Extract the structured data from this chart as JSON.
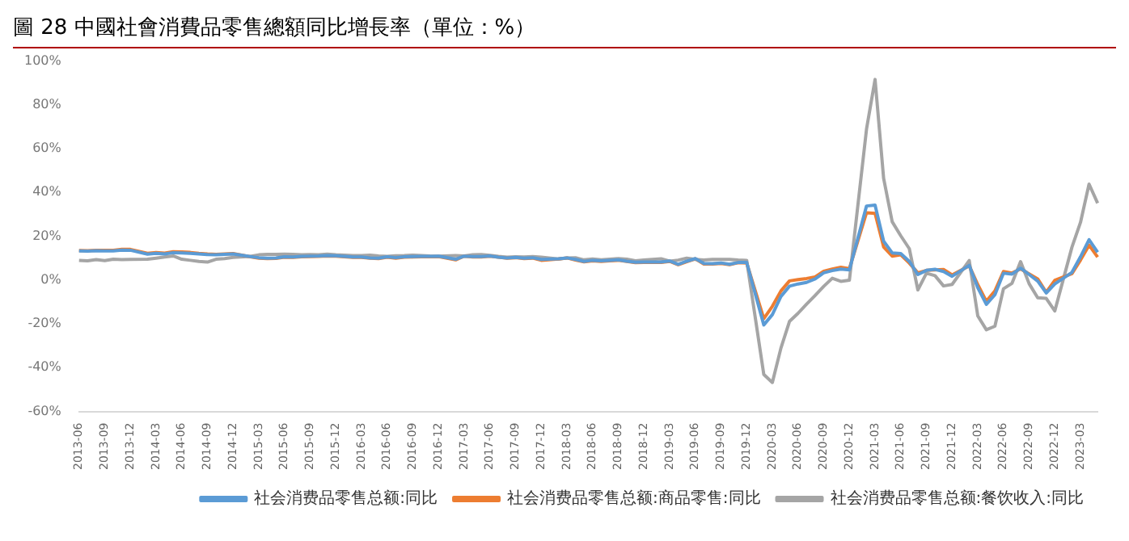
{
  "chart_data": {
    "type": "line",
    "title": "圖 28 中國社會消費品零售總額同比增長率（單位：%）",
    "categories": [
      "2013-06",
      null,
      null,
      "2013-09",
      null,
      null,
      "2013-12",
      null,
      null,
      "2014-03",
      null,
      null,
      "2014-06",
      null,
      null,
      "2014-09",
      null,
      null,
      "2014-12",
      null,
      null,
      "2015-03",
      null,
      null,
      "2015-06",
      null,
      null,
      "2015-09",
      null,
      null,
      "2015-12",
      null,
      null,
      "2016-03",
      null,
      null,
      "2016-06",
      null,
      null,
      "2016-09",
      null,
      null,
      "2016-12",
      null,
      null,
      "2017-03",
      null,
      null,
      "2017-06",
      null,
      null,
      "2017-09",
      null,
      null,
      "2017-12",
      null,
      null,
      "2018-03",
      null,
      null,
      "2018-06",
      null,
      null,
      "2018-09",
      null,
      null,
      "2018-12",
      null,
      null,
      "2019-03",
      null,
      null,
      "2019-06",
      null,
      null,
      "2019-09",
      null,
      null,
      "2019-12",
      null,
      null,
      "2020-03",
      null,
      null,
      "2020-06",
      null,
      null,
      "2020-09",
      null,
      null,
      "2020-12",
      null,
      null,
      "2021-03",
      null,
      null,
      "2021-06",
      null,
      null,
      "2021-09",
      null,
      null,
      "2021-12",
      null,
      null,
      "2022-03",
      null,
      null,
      "2022-06",
      null,
      null,
      "2022-09",
      null,
      null,
      "2022-12",
      null,
      null,
      "2023-03",
      null,
      null
    ],
    "series": [
      {
        "name": "社会消费品零售总额:同比",
        "color": "#5b9bd5",
        "values": [
          13.3,
          13.2,
          13.4,
          13.3,
          13.3,
          13.7,
          13.6,
          null,
          11.8,
          12.2,
          11.9,
          12.5,
          12.4,
          12.2,
          11.9,
          11.6,
          11.5,
          11.7,
          11.9,
          null,
          10.7,
          10.2,
          10.0,
          10.1,
          10.6,
          10.5,
          10.8,
          10.9,
          11.0,
          11.2,
          11.1,
          null,
          10.5,
          10.5,
          10.1,
          10.0,
          10.6,
          10.2,
          10.6,
          10.7,
          10.8,
          10.8,
          10.9,
          null,
          9.5,
          10.9,
          10.7,
          10.7,
          11.0,
          10.4,
          10.1,
          10.3,
          10.0,
          10.2,
          9.4,
          null,
          9.7,
          10.1,
          9.4,
          8.5,
          9.0,
          8.8,
          9.0,
          9.2,
          8.6,
          8.1,
          8.2,
          null,
          8.2,
          8.7,
          7.2,
          8.6,
          9.8,
          7.6,
          7.5,
          7.8,
          7.2,
          8.0,
          8.0,
          null,
          -20.5,
          -15.8,
          -7.5,
          -2.8,
          -1.8,
          -1.1,
          0.5,
          3.3,
          4.3,
          5.0,
          4.6,
          null,
          33.8,
          34.2,
          17.7,
          12.4,
          12.1,
          8.5,
          2.5,
          4.4,
          4.9,
          3.9,
          1.7,
          null,
          6.7,
          -3.5,
          -11.1,
          -6.7,
          3.1,
          2.7,
          5.4,
          2.5,
          -0.5,
          -5.9,
          -1.8,
          null,
          3.5,
          10.6,
          18.4,
          12.7
        ]
      },
      {
        "name": "社会消费品零售总额:商品零售:同比",
        "color": "#ed7d31",
        "values": [
          13.5,
          13.4,
          13.6,
          13.6,
          13.6,
          14.0,
          14.0,
          null,
          12.2,
          12.6,
          12.3,
          12.9,
          12.8,
          12.6,
          12.2,
          11.9,
          11.7,
          11.9,
          12.1,
          null,
          10.6,
          10.0,
          9.8,
          9.9,
          10.4,
          10.3,
          10.6,
          10.7,
          10.8,
          11.0,
          10.9,
          null,
          10.3,
          10.3,
          10.0,
          9.8,
          10.4,
          10.0,
          10.4,
          10.5,
          10.6,
          10.6,
          10.7,
          null,
          9.2,
          10.9,
          10.5,
          10.5,
          10.9,
          10.4,
          10.0,
          10.2,
          9.8,
          10.0,
          9.0,
          null,
          9.6,
          10.1,
          9.1,
          8.3,
          8.8,
          8.5,
          8.8,
          9.0,
          8.5,
          7.9,
          8.0,
          null,
          8.0,
          8.5,
          7.0,
          8.4,
          9.7,
          7.3,
          7.3,
          7.6,
          7.0,
          7.9,
          7.8,
          null,
          -17.6,
          -12.0,
          -5.0,
          -0.4,
          0.2,
          0.7,
          1.4,
          4.0,
          5.0,
          5.8,
          5.2,
          null,
          30.7,
          30.4,
          15.1,
          10.9,
          11.5,
          7.7,
          3.3,
          4.4,
          4.6,
          4.8,
          2.3,
          null,
          6.5,
          -2.1,
          -9.7,
          -5.0,
          3.9,
          3.2,
          5.1,
          2.8,
          0.5,
          -5.6,
          -0.1,
          null,
          2.9,
          9.1,
          15.9,
          10.5
        ]
      },
      {
        "name": "社会消费品零售总额:餐饮收入:同比",
        "color": "#a5a5a5",
        "values": [
          9.0,
          8.8,
          9.3,
          8.9,
          9.5,
          9.3,
          9.4,
          null,
          9.5,
          10.0,
          10.5,
          11.0,
          9.5,
          9.0,
          8.5,
          8.2,
          9.5,
          9.8,
          10.3,
          null,
          10.8,
          11.5,
          11.7,
          11.7,
          11.8,
          11.7,
          11.5,
          11.6,
          11.5,
          11.8,
          11.5,
          null,
          11.2,
          11.2,
          11.4,
          11.0,
          10.8,
          11.1,
          11.2,
          11.4,
          11.2,
          11.0,
          10.9,
          null,
          11.2,
          11.0,
          11.5,
          11.6,
          11.3,
          10.8,
          10.4,
          10.6,
          10.5,
          10.7,
          10.4,
          null,
          9.6,
          10.1,
          10.2,
          9.2,
          9.6,
          9.2,
          9.5,
          9.8,
          9.5,
          8.8,
          9.1,
          null,
          9.7,
          8.6,
          9.1,
          10.0,
          9.4,
          9.1,
          9.4,
          9.4,
          9.4,
          9.1,
          9.0,
          null,
          -43.1,
          -46.8,
          -31.1,
          -18.9,
          -15.2,
          -11.0,
          -7.0,
          -2.9,
          0.8,
          -0.6,
          -0.1,
          null,
          68.9,
          91.6,
          46.4,
          26.6,
          20.2,
          14.3,
          -4.5,
          3.1,
          2.0,
          -2.7,
          -2.0,
          null,
          8.9,
          -16.4,
          -22.7,
          -21.1,
          -4.0,
          -1.5,
          8.4,
          -1.7,
          -8.1,
          -8.4,
          -14.1,
          null,
          15.0,
          26.3,
          43.8,
          35.1
        ]
      }
    ],
    "ylim": [
      -60,
      100
    ],
    "yticks": [
      {
        "value": -60,
        "label": "-60%"
      },
      {
        "value": -40,
        "label": "-40%"
      },
      {
        "value": -20,
        "label": "-20%"
      },
      {
        "value": 0,
        "label": "0%"
      },
      {
        "value": 20,
        "label": "20%"
      },
      {
        "value": 40,
        "label": "40%"
      },
      {
        "value": 60,
        "label": "60%"
      },
      {
        "value": 80,
        "label": "80%"
      },
      {
        "value": 100,
        "label": "100%"
      }
    ],
    "grid": false,
    "legend": "bottom",
    "marker": "none",
    "line_style": "solid"
  }
}
